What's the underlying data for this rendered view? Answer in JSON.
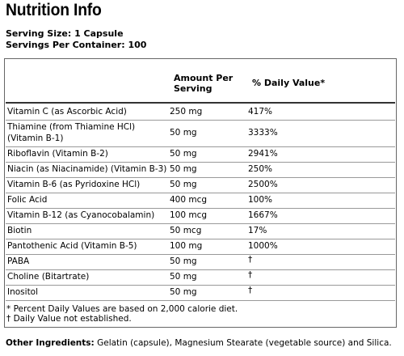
{
  "title": "Nutrition Info",
  "serving_size": "Serving Size: 1 Capsule",
  "servings_per_container": "Servings Per Container: 100",
  "table": {
    "header_amount": "Amount Per Serving",
    "header_dv": "% Daily Value*",
    "rows": [
      {
        "name": "Vitamin C (as Ascorbic Acid)",
        "amount": "250 mg",
        "dv": "417%"
      },
      {
        "name": "Thiamine (from Thiamine HCl) (Vitamin B-1)",
        "amount": "50 mg",
        "dv": "3333%"
      },
      {
        "name": "Riboflavin (Vitamin B-2)",
        "amount": "50 mg",
        "dv": "2941%"
      },
      {
        "name": "Niacin (as Niacinamide) (Vitamin B-3)",
        "amount": "50 mg",
        "dv": "250%"
      },
      {
        "name": "Vitamin B-6 (as Pyridoxine HCl)",
        "amount": "50 mg",
        "dv": "2500%"
      },
      {
        "name": "Folic Acid",
        "amount": "400 mcg",
        "dv": "100%"
      },
      {
        "name": "Vitamin B-12 (as Cyanocobalamin)",
        "amount": "100 mcg",
        "dv": "1667%"
      },
      {
        "name": "Biotin",
        "amount": "50 mcg",
        "dv": "17%"
      },
      {
        "name": "Pantothenic Acid (Vitamin B-5)",
        "amount": "100 mg",
        "dv": "1000%"
      },
      {
        "name": "PABA",
        "amount": "50 mg",
        "dv": "†"
      },
      {
        "name": "Choline (Bitartrate)",
        "amount": "50 mg",
        "dv": "†"
      },
      {
        "name": "Inositol",
        "amount": "50 mg",
        "dv": "†"
      }
    ]
  },
  "footnote_1": "* Percent Daily Values are based on 2,000 calorie diet.",
  "footnote_2": "† Daily Value not established.",
  "other_ingredients_label": "Other Ingredients:",
  "other_ingredients_text": "Gelatin (capsule), Magnesium Stearate (vegetable source) and Silica."
}
